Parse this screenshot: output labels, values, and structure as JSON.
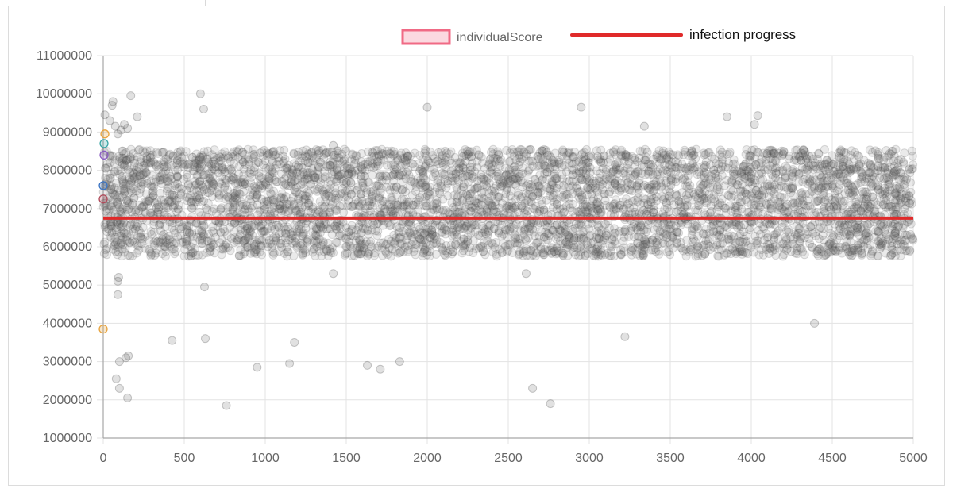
{
  "chart_data": {
    "type": "scatter",
    "legend": {
      "placement": "top-center",
      "items": [
        {
          "label": "individualScore",
          "marker": "box",
          "color": "#f06a85",
          "fill": "#fbd9e0"
        },
        {
          "label": "infection progress",
          "marker": "line",
          "color": "#e02a2a"
        }
      ]
    },
    "x_axis": {
      "min": 0,
      "max": 5000,
      "ticks": [
        0,
        500,
        1000,
        1500,
        2000,
        2500,
        3000,
        3500,
        4000,
        4500,
        5000
      ]
    },
    "y_axis": {
      "min": 1000000,
      "max": 11000000,
      "ticks": [
        1000000,
        2000000,
        3000000,
        4000000,
        5000000,
        6000000,
        7000000,
        8000000,
        9000000,
        10000000,
        11000000
      ]
    },
    "grid": true,
    "series": [
      {
        "name": "individualScore",
        "point_color": "#8c8c8c",
        "point_count": 5000,
        "dense_band": [
          5750000,
          8550000
        ],
        "outliers": [
          [
            10,
            9450000
          ],
          [
            40,
            9300000
          ],
          [
            55,
            9700000
          ],
          [
            60,
            9800000
          ],
          [
            75,
            9150000
          ],
          [
            90,
            8950000
          ],
          [
            110,
            9050000
          ],
          [
            130,
            9200000
          ],
          [
            150,
            9100000
          ],
          [
            170,
            9950000
          ],
          [
            210,
            9400000
          ],
          [
            600,
            10000000
          ],
          [
            620,
            9600000
          ],
          [
            1420,
            8650000
          ],
          [
            2000,
            9650000
          ],
          [
            2950,
            9650000
          ],
          [
            3340,
            9150000
          ],
          [
            3850,
            9400000
          ],
          [
            4020,
            9200000
          ],
          [
            4040,
            9430000
          ],
          [
            90,
            5100000
          ],
          [
            95,
            5200000
          ],
          [
            90,
            4750000
          ],
          [
            625,
            4950000
          ],
          [
            1420,
            5300000
          ],
          [
            2610,
            5300000
          ],
          [
            425,
            3550000
          ],
          [
            630,
            3600000
          ],
          [
            1180,
            3500000
          ],
          [
            3220,
            3650000
          ],
          [
            4390,
            4000000
          ],
          [
            100,
            3000000
          ],
          [
            140,
            3100000
          ],
          [
            155,
            3150000
          ],
          [
            950,
            2850000
          ],
          [
            1150,
            2950000
          ],
          [
            1630,
            2900000
          ],
          [
            1710,
            2800000
          ],
          [
            1830,
            3000000
          ],
          [
            80,
            2550000
          ],
          [
            100,
            2300000
          ],
          [
            150,
            2050000
          ],
          [
            760,
            1850000
          ],
          [
            2650,
            2300000
          ],
          [
            2760,
            1900000
          ]
        ],
        "highlighted": [
          {
            "x": 10,
            "y": 8950000,
            "color": "#e8a33d"
          },
          {
            "x": 5,
            "y": 8700000,
            "color": "#3aa6a6"
          },
          {
            "x": 5,
            "y": 8400000,
            "color": "#8a5cc2"
          },
          {
            "x": 0,
            "y": 7600000,
            "color": "#3a74c4"
          },
          {
            "x": 0,
            "y": 7250000,
            "color": "#b04a5a"
          },
          {
            "x": 0,
            "y": 3850000,
            "color": "#e8a33d"
          }
        ]
      },
      {
        "name": "infection progress",
        "type": "line",
        "color": "#e02a2a",
        "x": [
          0,
          5000
        ],
        "y": [
          6750000,
          6750000
        ]
      }
    ]
  }
}
